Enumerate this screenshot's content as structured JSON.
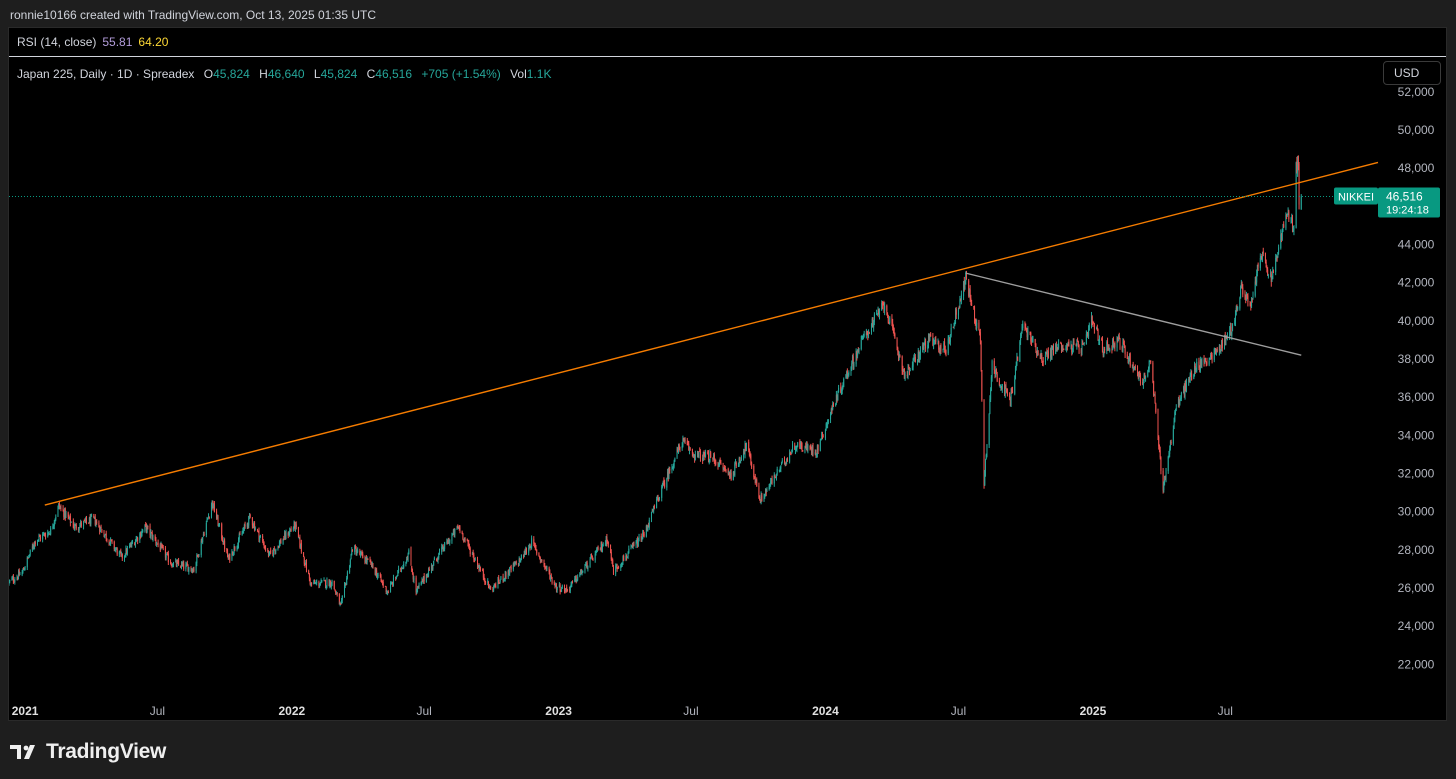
{
  "header": {
    "caption": "ronnie10166 created with TradingView.com, Oct 13, 2025 01:35 UTC"
  },
  "rsi": {
    "label": "RSI (14, close)",
    "value1": "55.81",
    "value2": "64.20",
    "value1_color": "#b39ddb",
    "value2_color": "#fdd835"
  },
  "legend": {
    "symbol": "Japan 225, Daily · 1D · Spreadex",
    "open_label": "O",
    "open": "45,824",
    "high_label": "H",
    "high": "46,640",
    "low_label": "L",
    "low": "45,824",
    "close_label": "C",
    "close": "46,516",
    "change": "+705 (+1.54%)",
    "vol_label": "Vol",
    "vol": "1.1K"
  },
  "currency_button": "USD",
  "price_tag": {
    "symbol": "NIKKEI",
    "price": "46,516",
    "countdown": "19:24:18",
    "color": "#089981"
  },
  "colors": {
    "up": "#26a69a",
    "down": "#ef5350",
    "trendline_upper": "#f57c00",
    "trendline_lower": "#9e9e9e",
    "background": "#000000"
  },
  "chart_data": {
    "type": "candlestick",
    "title": "Japan 225, Daily · 1D · Spreadex",
    "y_ticks": [
      22000,
      24000,
      26000,
      28000,
      30000,
      32000,
      34000,
      36000,
      38000,
      40000,
      42000,
      44000,
      46000,
      48000,
      50000,
      52000
    ],
    "y_tick_labels": [
      "22,000",
      "24,000",
      "26,000",
      "28,000",
      "30,000",
      "32,000",
      "34,000",
      "36,000",
      "38,000",
      "40,000",
      "42,000",
      "44,000",
      "46,000",
      "48,000",
      "50,000",
      "52,000"
    ],
    "ylim": [
      20500,
      52200
    ],
    "x_range": [
      "2020-12-10",
      "2026-01-26"
    ],
    "x_ticks": [
      {
        "date": "2021-01-01",
        "label": "2021",
        "major": true
      },
      {
        "date": "2021-07-01",
        "label": "Jul",
        "major": false
      },
      {
        "date": "2022-01-01",
        "label": "2022",
        "major": true
      },
      {
        "date": "2022-07-01",
        "label": "Jul",
        "major": false
      },
      {
        "date": "2023-01-01",
        "label": "2023",
        "major": true
      },
      {
        "date": "2023-07-01",
        "label": "Jul",
        "major": false
      },
      {
        "date": "2024-01-01",
        "label": "2024",
        "major": true
      },
      {
        "date": "2024-07-01",
        "label": "Jul",
        "major": false
      },
      {
        "date": "2025-01-01",
        "label": "2025",
        "major": true
      },
      {
        "date": "2025-07-01",
        "label": "Jul",
        "major": false
      }
    ],
    "price_path": [
      [
        "2020-12-10",
        26300
      ],
      [
        "2020-12-28",
        26800
      ],
      [
        "2021-01-15",
        28500
      ],
      [
        "2021-02-05",
        29000
      ],
      [
        "2021-02-16",
        30300
      ],
      [
        "2021-03-10",
        29200
      ],
      [
        "2021-04-05",
        29600
      ],
      [
        "2021-05-13",
        27600
      ],
      [
        "2021-06-15",
        29200
      ],
      [
        "2021-07-20",
        27300
      ],
      [
        "2021-08-20",
        27000
      ],
      [
        "2021-09-14",
        30500
      ],
      [
        "2021-10-06",
        27500
      ],
      [
        "2021-11-05",
        29700
      ],
      [
        "2021-12-01",
        27700
      ],
      [
        "2022-01-05",
        29300
      ],
      [
        "2022-01-27",
        26200
      ],
      [
        "2022-02-25",
        26300
      ],
      [
        "2022-03-09",
        25000
      ],
      [
        "2022-03-25",
        28100
      ],
      [
        "2022-04-20",
        27200
      ],
      [
        "2022-05-12",
        25800
      ],
      [
        "2022-06-10",
        27800
      ],
      [
        "2022-06-20",
        25800
      ],
      [
        "2022-07-20",
        27700
      ],
      [
        "2022-08-17",
        29200
      ],
      [
        "2022-09-30",
        25900
      ],
      [
        "2022-11-10",
        27500
      ],
      [
        "2022-11-25",
        28400
      ],
      [
        "2022-12-28",
        26100
      ],
      [
        "2023-01-13",
        25900
      ],
      [
        "2023-02-15",
        27500
      ],
      [
        "2023-03-09",
        28600
      ],
      [
        "2023-03-17",
        26900
      ],
      [
        "2023-04-28",
        28800
      ],
      [
        "2023-05-19",
        30900
      ],
      [
        "2023-06-19",
        33700
      ],
      [
        "2023-07-05",
        33000
      ],
      [
        "2023-07-31",
        32800
      ],
      [
        "2023-08-25",
        31900
      ],
      [
        "2023-09-15",
        33500
      ],
      [
        "2023-10-04",
        30600
      ],
      [
        "2023-11-20",
        33500
      ],
      [
        "2023-12-20",
        33200
      ],
      [
        "2024-01-15",
        35900
      ],
      [
        "2024-02-22",
        39100
      ],
      [
        "2024-03-22",
        40900
      ],
      [
        "2024-04-19",
        37100
      ],
      [
        "2024-05-20",
        39000
      ],
      [
        "2024-06-14",
        38500
      ],
      [
        "2024-07-11",
        42200
      ],
      [
        "2024-07-31",
        39000
      ],
      [
        "2024-08-05",
        31500
      ],
      [
        "2024-08-16",
        37600
      ],
      [
        "2024-09-10",
        35800
      ],
      [
        "2024-09-27",
        39800
      ],
      [
        "2024-10-24",
        38000
      ],
      [
        "2024-11-15",
        38700
      ],
      [
        "2024-12-20",
        38600
      ],
      [
        "2024-12-30",
        40000
      ],
      [
        "2025-01-15",
        38500
      ],
      [
        "2025-02-05",
        39000
      ],
      [
        "2025-03-10",
        36800
      ],
      [
        "2025-03-21",
        37800
      ],
      [
        "2025-04-07",
        31200
      ],
      [
        "2025-04-25",
        35500
      ],
      [
        "2025-05-20",
        37500
      ],
      [
        "2025-06-20",
        38400
      ],
      [
        "2025-07-10",
        39600
      ],
      [
        "2025-07-24",
        41800
      ],
      [
        "2025-08-05",
        40600
      ],
      [
        "2025-08-18",
        43600
      ],
      [
        "2025-09-02",
        42100
      ],
      [
        "2025-09-22",
        45500
      ],
      [
        "2025-10-03",
        45000
      ],
      [
        "2025-10-06",
        48000
      ],
      [
        "2025-10-09",
        48500
      ],
      [
        "2025-10-10",
        45800
      ],
      [
        "2025-10-13",
        46516
      ]
    ],
    "current_price": 46516,
    "trendlines": [
      {
        "name": "upper",
        "from": [
          "2021-01-28",
          30350
        ],
        "to": [
          "2026-01-26",
          48300
        ],
        "color": "#f57c00"
      },
      {
        "name": "lower",
        "from": [
          "2024-07-11",
          42500
        ],
        "to": [
          "2025-10-13",
          38200
        ],
        "color": "#9e9e9e"
      }
    ]
  },
  "footer": {
    "brand": "TradingView"
  }
}
